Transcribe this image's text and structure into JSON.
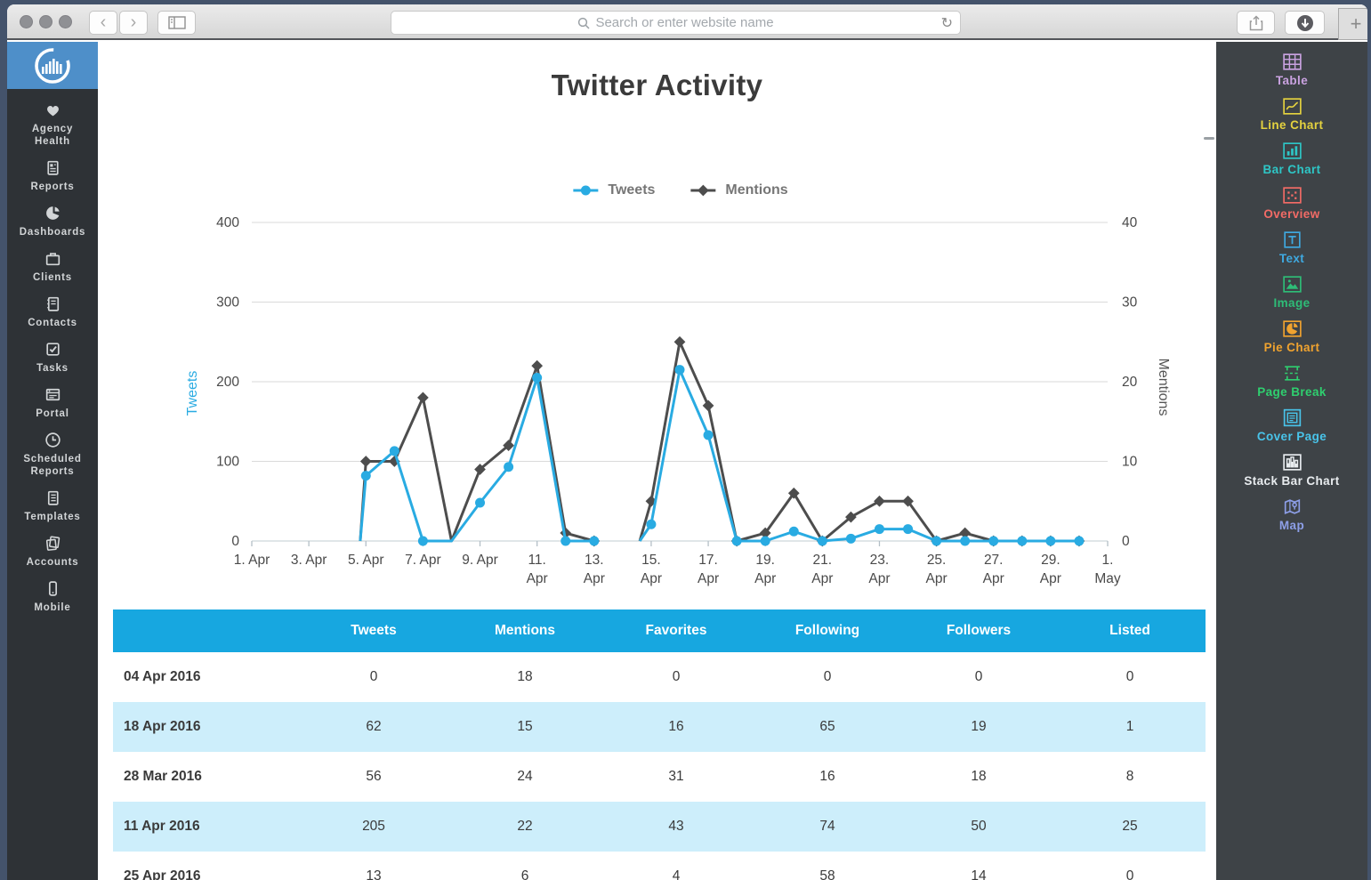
{
  "browser": {
    "url_placeholder": "Search or enter website name",
    "reload_glyph": "↻",
    "new_tab_glyph": "+",
    "back_glyph": "‹",
    "forward_glyph": "›"
  },
  "page": {
    "title": "Twitter Activity"
  },
  "sidebar": {
    "items": [
      {
        "label": "Agency Health",
        "icon": "heart"
      },
      {
        "label": "Reports",
        "icon": "reports"
      },
      {
        "label": "Dashboards",
        "icon": "dashboards"
      },
      {
        "label": "Clients",
        "icon": "clients"
      },
      {
        "label": "Contacts",
        "icon": "contacts"
      },
      {
        "label": "Tasks",
        "icon": "tasks"
      },
      {
        "label": "Portal",
        "icon": "portal"
      },
      {
        "label": "Scheduled Reports",
        "icon": "clock"
      },
      {
        "label": "Templates",
        "icon": "templates"
      },
      {
        "label": "Accounts",
        "icon": "accounts"
      },
      {
        "label": "Mobile",
        "icon": "mobile"
      }
    ]
  },
  "widgets": [
    {
      "label": "Table",
      "icon": "table",
      "color": "#c9a2e0"
    },
    {
      "label": "Line Chart",
      "icon": "line-chart",
      "color": "#e4d23f"
    },
    {
      "label": "Bar Chart",
      "icon": "bar-chart",
      "color": "#2ec6c6"
    },
    {
      "label": "Overview",
      "icon": "overview",
      "color": "#f26b66"
    },
    {
      "label": "Text",
      "icon": "text",
      "color": "#3fa9e0"
    },
    {
      "label": "Image",
      "icon": "image",
      "color": "#2ebd77"
    },
    {
      "label": "Pie Chart",
      "icon": "pie-chart",
      "color": "#f0a32f"
    },
    {
      "label": "Page Break",
      "icon": "page-break",
      "color": "#2fcf6f"
    },
    {
      "label": "Cover Page",
      "icon": "cover-page",
      "color": "#49c4ea"
    },
    {
      "label": "Stack Bar Chart",
      "icon": "stack-bar",
      "color": "#e8ecef"
    },
    {
      "label": "Map",
      "icon": "map",
      "color": "#8d9fe8"
    }
  ],
  "chart_data": {
    "type": "line",
    "title": "Twitter Activity",
    "x_axis": {
      "tick_days": [
        1,
        3,
        5,
        7,
        9,
        11,
        13,
        15,
        17,
        19,
        21,
        23,
        25,
        27,
        29,
        31
      ],
      "tick_labels": [
        "1. Apr",
        "3. Apr",
        "5. Apr",
        "7. Apr",
        "9. Apr",
        "11. Apr",
        "13. Apr",
        "15. Apr",
        "17. Apr",
        "19. Apr",
        "21. Apr",
        "23. Apr",
        "25. Apr",
        "27. Apr",
        "29. Apr",
        "1. May"
      ],
      "single_line_count": 5
    },
    "y_left": {
      "label": "Tweets",
      "ticks": [
        0,
        100,
        200,
        300,
        400
      ],
      "max": 400,
      "color": "#29abe2"
    },
    "y_right": {
      "label": "Mentions",
      "ticks": [
        0,
        10,
        20,
        30,
        40
      ],
      "max": 40,
      "color": "#555555"
    },
    "grid": true,
    "legend_position": "top-center",
    "series": [
      {
        "name": "Mentions",
        "color": "#4d4d4d",
        "marker": "diamond",
        "axis": "right",
        "segments": [
          [
            {
              "d": 4.8,
              "v": 0,
              "m": false
            },
            {
              "d": 5,
              "v": 10
            },
            {
              "d": 6,
              "v": 10
            },
            {
              "d": 7,
              "v": 18
            },
            {
              "d": 8,
              "v": 0,
              "m": false
            },
            {
              "d": 9,
              "v": 9
            },
            {
              "d": 10,
              "v": 12
            },
            {
              "d": 11,
              "v": 22
            },
            {
              "d": 12,
              "v": 1
            },
            {
              "d": 13,
              "v": 0
            }
          ],
          [
            {
              "d": 14.6,
              "v": 0,
              "m": false
            },
            {
              "d": 15,
              "v": 5
            },
            {
              "d": 16,
              "v": 25
            },
            {
              "d": 17,
              "v": 17
            },
            {
              "d": 18,
              "v": 0
            },
            {
              "d": 19,
              "v": 1
            },
            {
              "d": 20,
              "v": 6
            },
            {
              "d": 21,
              "v": 0
            },
            {
              "d": 22,
              "v": 3
            },
            {
              "d": 23,
              "v": 5
            },
            {
              "d": 24,
              "v": 5
            },
            {
              "d": 25,
              "v": 0
            },
            {
              "d": 26,
              "v": 1
            },
            {
              "d": 27,
              "v": 0
            },
            {
              "d": 28,
              "v": 0
            },
            {
              "d": 29,
              "v": 0
            },
            {
              "d": 30,
              "v": 0
            }
          ]
        ]
      },
      {
        "name": "Tweets",
        "color": "#29abe2",
        "marker": "circle",
        "axis": "left",
        "segments": [
          [
            {
              "d": 4.8,
              "v": 0,
              "m": false
            },
            {
              "d": 5,
              "v": 82
            },
            {
              "d": 6,
              "v": 113
            },
            {
              "d": 7,
              "v": 0
            },
            {
              "d": 8,
              "v": 0,
              "m": false
            },
            {
              "d": 9,
              "v": 48
            },
            {
              "d": 10,
              "v": 93
            },
            {
              "d": 11,
              "v": 205
            },
            {
              "d": 12,
              "v": 0
            },
            {
              "d": 13,
              "v": 0
            }
          ],
          [
            {
              "d": 14.6,
              "v": 0,
              "m": false
            },
            {
              "d": 15,
              "v": 21
            },
            {
              "d": 16,
              "v": 215
            },
            {
              "d": 17,
              "v": 133
            },
            {
              "d": 18,
              "v": 0
            },
            {
              "d": 19,
              "v": 0
            },
            {
              "d": 20,
              "v": 12
            },
            {
              "d": 21,
              "v": 0
            },
            {
              "d": 22,
              "v": 3
            },
            {
              "d": 23,
              "v": 15
            },
            {
              "d": 24,
              "v": 15
            },
            {
              "d": 25,
              "v": 0
            },
            {
              "d": 26,
              "v": 0
            },
            {
              "d": 27,
              "v": 0
            },
            {
              "d": 28,
              "v": 0
            },
            {
              "d": 29,
              "v": 0
            },
            {
              "d": 30,
              "v": 0
            }
          ]
        ]
      }
    ]
  },
  "table": {
    "headers": [
      "",
      "Tweets",
      "Mentions",
      "Favorites",
      "Following",
      "Followers",
      "Listed"
    ],
    "rows": [
      {
        "date": "04 Apr 2016",
        "values": [
          0,
          18,
          0,
          0,
          0,
          0
        ]
      },
      {
        "date": "18 Apr 2016",
        "values": [
          62,
          15,
          16,
          65,
          19,
          1
        ]
      },
      {
        "date": "28 Mar 2016",
        "values": [
          56,
          24,
          31,
          16,
          18,
          8
        ]
      },
      {
        "date": "11 Apr 2016",
        "values": [
          205,
          22,
          43,
          74,
          50,
          25
        ]
      },
      {
        "date": "25 Apr 2016",
        "values": [
          13,
          6,
          4,
          58,
          14,
          0
        ]
      }
    ]
  },
  "colors": {
    "table_header": "#17a7e0",
    "table_row_alt": "#cdeefb",
    "tweets_line": "#29abe2",
    "mentions_line": "#4d4d4d",
    "left_sidebar_bg": "#2e3236",
    "right_sidebar_bg": "#3e4347",
    "logo_bg": "#4e8fc9",
    "desktop_bg": "#44536b"
  }
}
